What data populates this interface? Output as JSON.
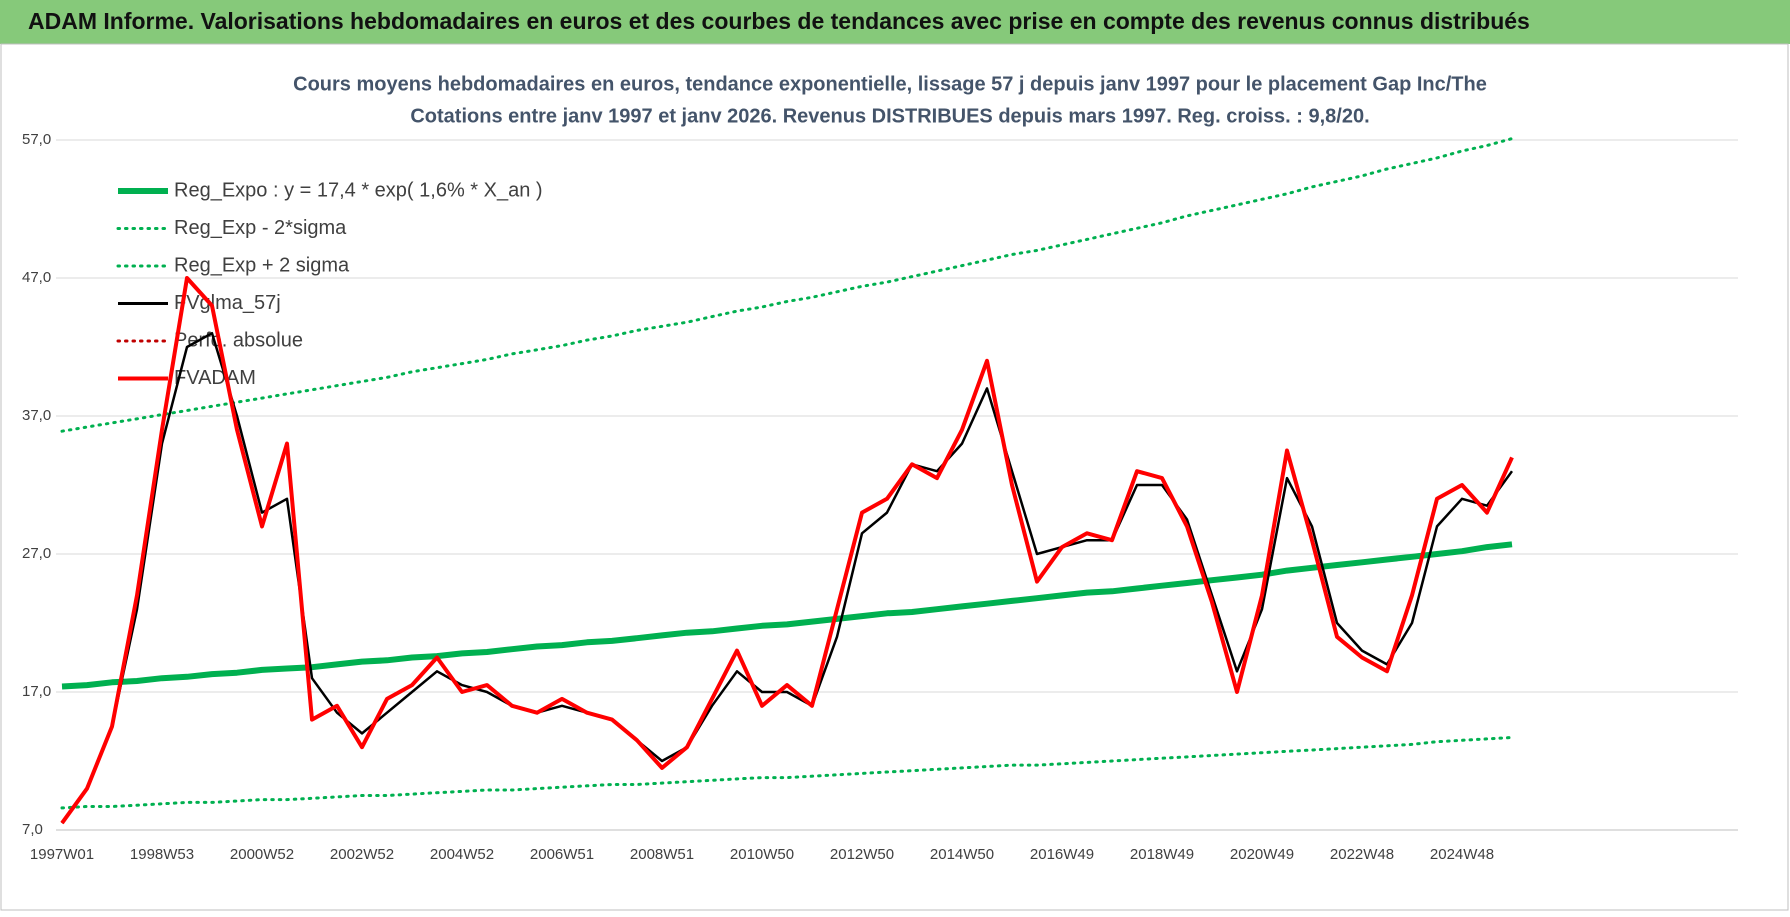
{
  "header": {
    "title": "ADAM Informe. Valorisations hebdomadaires en euros et des courbes de tendances avec prise en compte des revenus connus distribués"
  },
  "chart_data": {
    "type": "line",
    "title": "Cours moyens hebdomadaires en euros, tendance exponentielle, lissage 57 j depuis janv 1997  pour le placement Gap Inc/The",
    "subtitle": "Cotations entre janv 1997 et janv 2026. Revenus DISTRIBUES depuis mars 1997.  Reg. croiss. : 9,8/20.",
    "categories": [
      "1997W01",
      null,
      null,
      null,
      "1998W53",
      null,
      null,
      null,
      "2000W52",
      null,
      null,
      null,
      "2002W52",
      null,
      null,
      null,
      "2004W52",
      null,
      null,
      null,
      "2006W51",
      null,
      null,
      null,
      "2008W51",
      null,
      null,
      null,
      "2010W50",
      null,
      null,
      null,
      "2012W50",
      null,
      null,
      null,
      "2014W50",
      null,
      null,
      null,
      "2016W49",
      null,
      null,
      null,
      "2018W49",
      null,
      null,
      null,
      "2020W49",
      null,
      null,
      null,
      "2022W48",
      null,
      null,
      null,
      "2024W48",
      null,
      null
    ],
    "ylim": [
      7,
      57
    ],
    "yticks": [
      {
        "value": 7,
        "label": "7,0"
      },
      {
        "value": 17,
        "label": "17,0"
      },
      {
        "value": 27,
        "label": "27,0"
      },
      {
        "value": 37,
        "label": "37,0"
      },
      {
        "value": 47,
        "label": "47,0"
      },
      {
        "value": 57,
        "label": "57,0"
      }
    ],
    "grid": true,
    "legend": "upper left",
    "series": [
      {
        "name": "Reg_Expo : y = 17,4 * exp( 1,6% *  X_an )",
        "color": "#00b050",
        "style": "solid",
        "width": 6,
        "values": [
          17.4,
          17.5,
          17.7,
          17.8,
          18.0,
          18.1,
          18.3,
          18.4,
          18.6,
          18.7,
          18.8,
          19.0,
          19.2,
          19.3,
          19.5,
          19.6,
          19.8,
          19.9,
          20.1,
          20.3,
          20.4,
          20.6,
          20.7,
          20.9,
          21.1,
          21.3,
          21.4,
          21.6,
          21.8,
          21.9,
          22.1,
          22.3,
          22.5,
          22.7,
          22.8,
          23.0,
          23.2,
          23.4,
          23.6,
          23.8,
          24.0,
          24.2,
          24.3,
          24.5,
          24.7,
          24.9,
          25.1,
          25.3,
          25.5,
          25.8,
          26.0,
          26.2,
          26.4,
          26.6,
          26.8,
          27.0,
          27.2,
          27.5,
          27.7
        ]
      },
      {
        "name": "Reg_Exp - 2*sigma",
        "color": "#00b050",
        "style": "dotted",
        "width": 3,
        "values": [
          8.6,
          8.7,
          8.7,
          8.8,
          8.9,
          9.0,
          9.0,
          9.1,
          9.2,
          9.2,
          9.3,
          9.4,
          9.5,
          9.5,
          9.6,
          9.7,
          9.8,
          9.9,
          9.9,
          10.0,
          10.1,
          10.2,
          10.3,
          10.3,
          10.4,
          10.5,
          10.6,
          10.7,
          10.8,
          10.8,
          10.9,
          11.0,
          11.1,
          11.2,
          11.3,
          11.4,
          11.5,
          11.6,
          11.7,
          11.7,
          11.8,
          11.9,
          12.0,
          12.1,
          12.2,
          12.3,
          12.4,
          12.5,
          12.6,
          12.7,
          12.8,
          12.9,
          13.0,
          13.1,
          13.2,
          13.4,
          13.5,
          13.6,
          13.7
        ]
      },
      {
        "name": "Reg_Exp + 2 sigma",
        "color": "#00b050",
        "style": "dotted",
        "width": 3,
        "values": [
          35.9,
          36.2,
          36.5,
          36.8,
          37.1,
          37.4,
          37.7,
          38.0,
          38.3,
          38.6,
          38.9,
          39.2,
          39.5,
          39.8,
          40.2,
          40.5,
          40.8,
          41.1,
          41.5,
          41.8,
          42.1,
          42.5,
          42.8,
          43.2,
          43.5,
          43.8,
          44.2,
          44.6,
          44.9,
          45.3,
          45.6,
          46.0,
          46.4,
          46.7,
          47.1,
          47.5,
          47.9,
          48.3,
          48.7,
          49.0,
          49.4,
          49.8,
          50.2,
          50.6,
          51.0,
          51.5,
          51.9,
          52.3,
          52.7,
          53.1,
          53.6,
          54.0,
          54.4,
          54.9,
          55.3,
          55.7,
          56.2,
          56.6,
          57.1
        ]
      },
      {
        "name": "FVglma_57j",
        "color": "#000000",
        "style": "solid",
        "width": 2.5,
        "values": [
          7.5,
          10,
          14.5,
          23,
          35,
          42,
          43,
          37,
          30,
          31,
          18,
          15.5,
          14,
          15.5,
          17,
          18.5,
          17.5,
          17,
          16,
          15.5,
          16,
          15.5,
          15,
          13.5,
          12,
          13,
          16,
          18.5,
          17,
          17,
          16,
          21,
          28.5,
          30,
          33.5,
          33,
          35,
          39,
          33,
          27,
          27.5,
          28,
          28,
          32,
          32,
          29.5,
          24,
          18.5,
          23,
          32.5,
          29,
          22,
          20,
          19,
          22,
          29,
          31,
          30.5,
          33
        ]
      },
      {
        "name": "Perfo. absolue",
        "color": "#c00000",
        "style": "dotted",
        "width": 2,
        "values": [
          null,
          null,
          null,
          null,
          null,
          null,
          null,
          null,
          null,
          null,
          null,
          null,
          null,
          null,
          null,
          null,
          null,
          null,
          null,
          null,
          null,
          null,
          null,
          null,
          null,
          null,
          null,
          null,
          null,
          null,
          null,
          null,
          null,
          null,
          null,
          null,
          null,
          null,
          null,
          null,
          null,
          null,
          null,
          null,
          null,
          null,
          null,
          null,
          null,
          null,
          null,
          null,
          null,
          null,
          null,
          null,
          null,
          null,
          null
        ]
      },
      {
        "name": "FVADAM",
        "color": "#ff0000",
        "style": "solid",
        "width": 4,
        "values": [
          7.5,
          10,
          14.5,
          24,
          36,
          47,
          45,
          36,
          29,
          35,
          15,
          16,
          13,
          16.5,
          17.5,
          19.5,
          17,
          17.5,
          16,
          15.5,
          16.5,
          15.5,
          15,
          13.5,
          11.5,
          13,
          16.5,
          20,
          16,
          17.5,
          16,
          23,
          30,
          31,
          33.5,
          32.5,
          36,
          41,
          32,
          25,
          27.5,
          28.5,
          28,
          33,
          32.5,
          29,
          23.5,
          17,
          24,
          34.5,
          28,
          21,
          19.5,
          18.5,
          24,
          31,
          32,
          30,
          34
        ]
      }
    ]
  }
}
